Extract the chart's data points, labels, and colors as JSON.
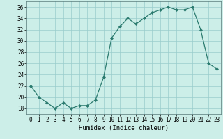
{
  "x": [
    0,
    1,
    2,
    3,
    4,
    5,
    6,
    7,
    8,
    9,
    10,
    11,
    12,
    13,
    14,
    15,
    16,
    17,
    18,
    19,
    20,
    21,
    22,
    23
  ],
  "y": [
    22,
    20,
    19,
    18,
    19,
    18,
    18.5,
    18.5,
    19.5,
    23.5,
    30.5,
    32.5,
    34,
    33,
    34,
    35,
    35.5,
    36,
    35.5,
    35.5,
    36,
    32,
    26,
    25
  ],
  "xlabel": "Humidex (Indice chaleur)",
  "ylim": [
    17,
    37
  ],
  "xlim": [
    -0.5,
    23.5
  ],
  "yticks": [
    18,
    20,
    22,
    24,
    26,
    28,
    30,
    32,
    34,
    36
  ],
  "xticks": [
    0,
    1,
    2,
    3,
    4,
    5,
    6,
    7,
    8,
    9,
    10,
    11,
    12,
    13,
    14,
    15,
    16,
    17,
    18,
    19,
    20,
    21,
    22,
    23
  ],
  "line_color": "#2a7a6e",
  "marker_color": "#2a7a6e",
  "bg_color": "#cceee8",
  "grid_color": "#99cccc",
  "fig_bg": "#cceee8",
  "tick_fontsize": 5.5,
  "xlabel_fontsize": 6.5,
  "marker_size": 2.0,
  "line_width": 0.9
}
